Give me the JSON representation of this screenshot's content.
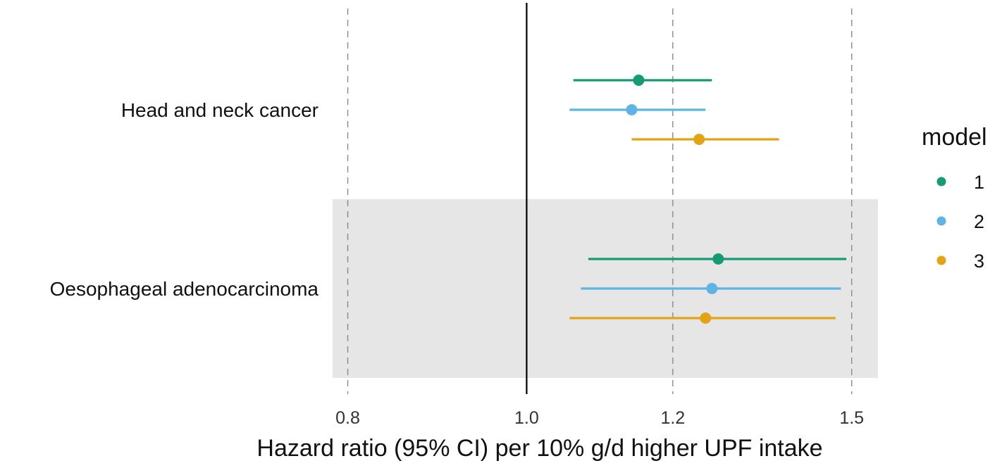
{
  "chart_data": {
    "type": "forest",
    "title": "",
    "xlabel": "Hazard ratio (95% CI) per 10% g/d higher UPF intake",
    "ylabel": "",
    "x_scale": "log",
    "xlim": [
      0.785,
      1.55
    ],
    "x_ticks": [
      0.8,
      1.0,
      1.2,
      1.5
    ],
    "x_tick_labels": [
      "0.8",
      "1.0",
      "1.2",
      "1.5"
    ],
    "reference_line": 1.0,
    "categories": [
      "Head and neck cancer",
      "Oesophageal adenocarcinoma"
    ],
    "shaded_categories": [
      "Oesophageal adenocarcinoma"
    ],
    "legend": {
      "title": "model",
      "position": "right",
      "entries": [
        "1",
        "2",
        "3"
      ]
    },
    "colors": {
      "1": "#159a74",
      "2": "#5fb4e5",
      "3": "#e4a312",
      "band": "#e6e6e6",
      "reference": "#000000",
      "grid": "#8a8a8a"
    },
    "series": [
      {
        "name": "1",
        "points": [
          {
            "category": "Head and neck cancer",
            "hr": 1.15,
            "lower": 1.06,
            "upper": 1.26
          },
          {
            "category": "Oesophageal adenocarcinoma",
            "hr": 1.27,
            "lower": 1.08,
            "upper": 1.49
          }
        ]
      },
      {
        "name": "2",
        "points": [
          {
            "category": "Head and neck cancer",
            "hr": 1.14,
            "lower": 1.055,
            "upper": 1.25
          },
          {
            "category": "Oesophageal adenocarcinoma",
            "hr": 1.26,
            "lower": 1.07,
            "upper": 1.48
          }
        ]
      },
      {
        "name": "3",
        "points": [
          {
            "category": "Head and neck cancer",
            "hr": 1.24,
            "lower": 1.14,
            "upper": 1.37
          },
          {
            "category": "Oesophageal adenocarcinoma",
            "hr": 1.25,
            "lower": 1.055,
            "upper": 1.47
          }
        ]
      }
    ]
  }
}
